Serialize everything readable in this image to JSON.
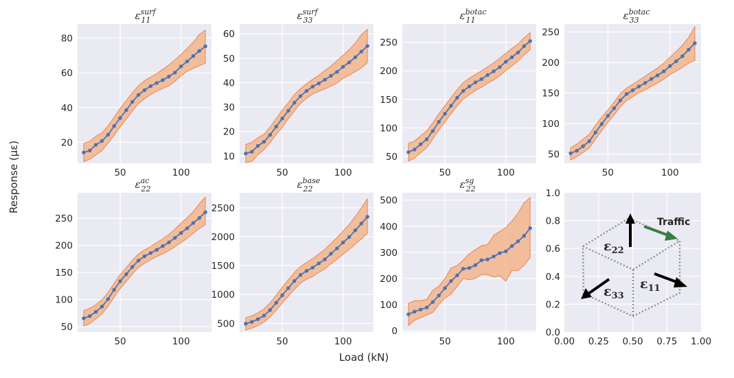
{
  "figure": {
    "xlabel": "Load (kN)",
    "ylabel": "Response (με)",
    "colors": {
      "panel_bg": "#eaeaf2",
      "grid": "#ffffff",
      "line": "#4c72b0",
      "band": "#f4a46c",
      "band_edge": "#e8743b",
      "traffic_arrow": "#3a7d44"
    }
  },
  "chart_data": [
    {
      "type": "line",
      "title": "ε_11^surf",
      "title_sub": "11",
      "title_sup": "surf",
      "x": [
        20,
        25,
        30,
        35,
        40,
        45,
        50,
        55,
        60,
        65,
        70,
        75,
        80,
        85,
        90,
        95,
        100,
        105,
        110,
        115,
        120
      ],
      "series": [
        {
          "values": [
            14.2,
            15.3,
            18.6,
            20.8,
            24.4,
            29.4,
            34.0,
            38.5,
            43.3,
            47.3,
            50.0,
            52.3,
            54.1,
            55.8,
            57.8,
            60.1,
            63.7,
            66.5,
            69.6,
            72.5,
            75.2
          ]
        },
        {
          "name": "upper",
          "values": [
            19.5,
            20.6,
            23.5,
            25.5,
            29.5,
            34.5,
            39.5,
            44.0,
            48.5,
            52.5,
            55.5,
            57.5,
            59.5,
            62.0,
            64.5,
            67.5,
            70.5,
            74.0,
            77.5,
            82.0,
            84.5
          ]
        },
        {
          "name": "lower",
          "values": [
            9.0,
            10.2,
            12.8,
            15.3,
            19.5,
            24.0,
            29.0,
            33.3,
            38.0,
            42.3,
            45.0,
            47.5,
            49.3,
            51.0,
            52.5,
            55.0,
            58.3,
            60.8,
            62.5,
            64.0,
            65.5
          ]
        }
      ],
      "xticks": [
        50,
        100
      ],
      "yticks": [
        20,
        40,
        60,
        80
      ],
      "xlim": [
        15,
        125
      ],
      "ylim": [
        8,
        88
      ]
    },
    {
      "type": "line",
      "title": "ε_33^surf",
      "title_sub": "33",
      "title_sup": "surf",
      "x": [
        20,
        25,
        30,
        35,
        40,
        45,
        50,
        55,
        60,
        65,
        70,
        75,
        80,
        85,
        90,
        95,
        100,
        105,
        110,
        115,
        120
      ],
      "series": [
        {
          "values": [
            11.0,
            11.7,
            14.1,
            15.8,
            18.6,
            22.0,
            25.3,
            28.5,
            31.8,
            34.5,
            36.6,
            38.4,
            39.7,
            41.2,
            42.8,
            44.4,
            46.5,
            48.3,
            50.4,
            52.7,
            55.0
          ]
        },
        {
          "name": "upper",
          "values": [
            14.7,
            15.6,
            17.5,
            18.9,
            21.8,
            25.3,
            28.8,
            31.8,
            35.1,
            37.5,
            39.6,
            41.4,
            43.0,
            45.0,
            46.8,
            49.0,
            51.2,
            53.5,
            56.2,
            59.7,
            61.8
          ]
        },
        {
          "name": "lower",
          "values": [
            7.3,
            7.8,
            10.5,
            12.6,
            15.5,
            18.8,
            21.6,
            25.2,
            28.4,
            31.5,
            33.6,
            35.4,
            36.4,
            37.4,
            38.6,
            39.8,
            41.8,
            43.0,
            44.5,
            46.0,
            48.2
          ]
        }
      ],
      "xticks": [
        50,
        100
      ],
      "yticks": [
        10,
        20,
        30,
        40,
        50,
        60
      ],
      "xlim": [
        15,
        125
      ],
      "ylim": [
        7,
        64
      ]
    },
    {
      "type": "line",
      "title": "ε_11^botac",
      "title_sub": "11",
      "title_sup": "botac",
      "x": [
        20,
        25,
        30,
        35,
        40,
        45,
        50,
        55,
        60,
        65,
        70,
        75,
        80,
        85,
        90,
        95,
        100,
        105,
        110,
        115,
        120
      ],
      "series": [
        {
          "values": [
            57.5,
            62.1,
            71.2,
            80.0,
            94.6,
            110.7,
            124.9,
            138.7,
            152.8,
            164.8,
            172.6,
            179.7,
            185.5,
            192.5,
            199.1,
            206.5,
            215.8,
            223.8,
            232.0,
            243.2,
            252.2
          ]
        },
        {
          "name": "upper",
          "values": [
            73.0,
            77.0,
            86.0,
            95.0,
            109.0,
            125.0,
            139.0,
            153.0,
            167.0,
            179.0,
            187.0,
            193.5,
            200.0,
            207.0,
            214.0,
            222.0,
            231.0,
            239.0,
            247.0,
            258.0,
            267.0
          ]
        },
        {
          "name": "lower",
          "values": [
            42.0,
            47.0,
            56.5,
            65.0,
            80.5,
            96.0,
            110.5,
            124.5,
            138.5,
            150.5,
            158.0,
            165.5,
            171.0,
            178.0,
            184.0,
            191.0,
            200.5,
            208.5,
            217.0,
            228.0,
            237.0
          ]
        }
      ],
      "xticks": [
        50,
        100
      ],
      "yticks": [
        50,
        100,
        150,
        200,
        250
      ],
      "xlim": [
        15,
        125
      ],
      "ylim": [
        38,
        282
      ]
    },
    {
      "type": "line",
      "title": "ε_33^botac",
      "title_sub": "33",
      "title_sup": "botac",
      "x": [
        20,
        25,
        30,
        35,
        40,
        45,
        50,
        55,
        60,
        65,
        70,
        75,
        80,
        85,
        90,
        95,
        100,
        105,
        110,
        115,
        120
      ],
      "series": [
        {
          "values": [
            51.4,
            55.6,
            63.0,
            71.1,
            85.5,
            99.3,
            112.7,
            125.1,
            138.0,
            148.3,
            154.5,
            160.7,
            166.5,
            173.0,
            179.0,
            185.4,
            194.1,
            202.0,
            210.4,
            221.0,
            231.6
          ]
        },
        {
          "name": "upper",
          "values": [
            60.5,
            66.5,
            74.5,
            82.5,
            97.5,
            110.5,
            122.5,
            135.0,
            149.0,
            158.0,
            164.5,
            171.0,
            177.5,
            184.5,
            191.0,
            199.0,
            208.5,
            218.0,
            228.5,
            241.0,
            259.0
          ]
        },
        {
          "name": "lower",
          "values": [
            40.5,
            45.5,
            52.5,
            60.0,
            74.0,
            88.5,
            102.0,
            114.0,
            127.5,
            137.5,
            144.0,
            150.5,
            155.0,
            161.0,
            166.5,
            172.5,
            180.0,
            186.0,
            192.0,
            199.0,
            203.0
          ]
        }
      ],
      "xticks": [
        50,
        100
      ],
      "yticks": [
        50,
        100,
        150,
        200,
        250
      ],
      "xlim": [
        15,
        125
      ],
      "ylim": [
        35,
        263
      ]
    },
    {
      "type": "line",
      "title": "ε_22^ac",
      "title_sub": "22",
      "title_sup": "ac",
      "x": [
        20,
        25,
        30,
        35,
        40,
        45,
        50,
        55,
        60,
        65,
        70,
        75,
        80,
        85,
        90,
        95,
        100,
        105,
        110,
        115,
        120
      ],
      "series": [
        {
          "values": [
            65.3,
            69.4,
            77.2,
            86.9,
            100.8,
            117.9,
            133.8,
            146.8,
            160.1,
            171.9,
            179.8,
            185.8,
            191.7,
            198.6,
            205.4,
            213.8,
            222.9,
            231.5,
            241.2,
            250.5,
            261.2
          ]
        },
        {
          "name": "upper",
          "values": [
            79.5,
            83.5,
            90.5,
            99.5,
            113.0,
            130.0,
            146.0,
            159.0,
            172.5,
            184.0,
            191.5,
            198.0,
            205.0,
            212.0,
            220.0,
            230.0,
            241.0,
            251.0,
            262.0,
            277.0,
            289.0
          ]
        },
        {
          "name": "lower",
          "values": [
            51.0,
            55.5,
            64.0,
            73.5,
            87.5,
            104.5,
            120.0,
            133.5,
            147.0,
            159.0,
            167.0,
            173.5,
            179.0,
            184.5,
            190.5,
            197.5,
            205.0,
            213.0,
            222.0,
            231.0,
            238.0
          ]
        }
      ],
      "xticks": [
        50,
        100
      ],
      "yticks": [
        50,
        100,
        150,
        200,
        250
      ],
      "xlim": [
        15,
        125
      ],
      "ylim": [
        40,
        297
      ]
    },
    {
      "type": "line",
      "title": "ε_22^base",
      "title_sub": "22",
      "title_sup": "base",
      "x": [
        20,
        25,
        30,
        35,
        40,
        45,
        50,
        55,
        60,
        65,
        70,
        75,
        80,
        85,
        90,
        95,
        100,
        105,
        110,
        115,
        120
      ],
      "series": [
        {
          "values": [
            495,
            525,
            573,
            634,
            730,
            856,
            986,
            1111,
            1234,
            1338,
            1408,
            1465,
            1537,
            1608,
            1706,
            1797,
            1900,
            1993,
            2110,
            2226,
            2345
          ]
        },
        {
          "name": "upper",
          "values": [
            600,
            630,
            685,
            750,
            855,
            990,
            1125,
            1255,
            1380,
            1485,
            1555,
            1620,
            1700,
            1780,
            1885,
            1985,
            2100,
            2210,
            2350,
            2500,
            2655
          ]
        },
        {
          "name": "lower",
          "values": [
            385,
            415,
            460,
            520,
            610,
            725,
            850,
            970,
            1090,
            1195,
            1265,
            1310,
            1380,
            1440,
            1530,
            1610,
            1700,
            1775,
            1870,
            1960,
            2060
          ]
        }
      ],
      "xticks": [
        50,
        100
      ],
      "yticks": [
        500,
        1000,
        1500,
        2000,
        2500
      ],
      "xlim": [
        15,
        125
      ],
      "ylim": [
        350,
        2760
      ]
    },
    {
      "type": "line",
      "title": "ε_22^sg",
      "title_sub": "22",
      "title_sup": "sg",
      "x": [
        20,
        25,
        30,
        35,
        40,
        45,
        50,
        55,
        60,
        65,
        70,
        75,
        80,
        85,
        90,
        95,
        100,
        105,
        110,
        115,
        120
      ],
      "series": [
        {
          "values": [
            63,
            73,
            81,
            89,
            110,
            135,
            163,
            190,
            212,
            237,
            240,
            251,
            270,
            273,
            284,
            297,
            304,
            324,
            342,
            363,
            393
          ]
        },
        {
          "name": "upper",
          "values": [
            105,
            115,
            115,
            120,
            155,
            170,
            200,
            240,
            250,
            270,
            295,
            310,
            325,
            330,
            365,
            380,
            395,
            420,
            450,
            490,
            510
          ]
        },
        {
          "name": "lower",
          "values": [
            20,
            40,
            50,
            60,
            70,
            100,
            125,
            140,
            170,
            200,
            195,
            200,
            215,
            215,
            205,
            210,
            190,
            230,
            230,
            250,
            280
          ]
        }
      ],
      "xticks": [
        50,
        100
      ],
      "yticks": [
        0,
        100,
        200,
        300,
        400,
        500
      ],
      "xlim": [
        15,
        125
      ],
      "ylim": [
        -5,
        528
      ]
    }
  ],
  "diagram": {
    "xticks": [
      "0.00",
      "0.25",
      "0.50",
      "0.75",
      "1.00"
    ],
    "yticks": [
      "0.0",
      "0.2",
      "0.4",
      "0.6",
      "0.8",
      "1.0"
    ],
    "traffic_label": "Traffic",
    "eps22": "ε",
    "eps22_sub": "22",
    "eps33": "ε",
    "eps33_sub": "33",
    "eps11": "ε",
    "eps11_sub": "11"
  }
}
